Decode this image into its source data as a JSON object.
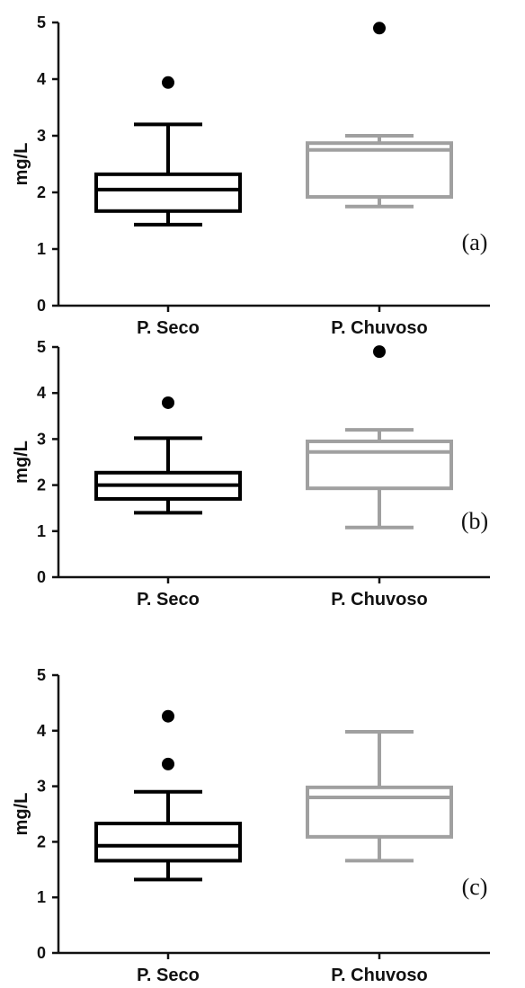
{
  "chart_data": [
    {
      "type": "boxplot",
      "panel_label": "(a)",
      "ylabel": "mg/L",
      "ylim": [
        0,
        5
      ],
      "yticks": [
        "0",
        "1",
        "2",
        "3",
        "4",
        "5"
      ],
      "categories": [
        "P. Seco",
        "P. Chuvoso"
      ],
      "series": [
        {
          "color": "#000000",
          "whisker_low": 1.43,
          "q1": 1.67,
          "median": 2.05,
          "q3": 2.32,
          "whisker_high": 3.2,
          "outliers": [
            3.94
          ]
        },
        {
          "color": "#a0a0a0",
          "whisker_low": 1.75,
          "q1": 1.92,
          "median": 2.75,
          "q3": 2.87,
          "whisker_high": 3.0,
          "outliers": [
            4.9
          ]
        }
      ]
    },
    {
      "type": "boxplot",
      "panel_label": "(b)",
      "ylabel": "mg/L",
      "ylim": [
        0,
        5
      ],
      "yticks": [
        "0",
        "1",
        "2",
        "3",
        "4",
        "5"
      ],
      "categories": [
        "P. Seco",
        "P. Chuvoso"
      ],
      "series": [
        {
          "color": "#000000",
          "whisker_low": 1.4,
          "q1": 1.7,
          "median": 2.0,
          "q3": 2.27,
          "whisker_high": 3.02,
          "outliers": [
            3.79
          ]
        },
        {
          "color": "#a0a0a0",
          "whisker_low": 1.08,
          "q1": 1.93,
          "median": 2.72,
          "q3": 2.95,
          "whisker_high": 3.2,
          "outliers": [
            4.9
          ]
        }
      ]
    },
    {
      "type": "boxplot",
      "panel_label": "(c)",
      "ylabel": "mg/L",
      "ylim": [
        0,
        5
      ],
      "yticks": [
        "0",
        "1",
        "2",
        "3",
        "4",
        "5"
      ],
      "categories": [
        "P. Seco",
        "P. Chuvoso"
      ],
      "series": [
        {
          "color": "#000000",
          "whisker_low": 1.32,
          "q1": 1.66,
          "median": 1.93,
          "q3": 2.33,
          "whisker_high": 2.9,
          "outliers": [
            3.4,
            4.26
          ]
        },
        {
          "color": "#a0a0a0",
          "whisker_low": 1.66,
          "q1": 2.09,
          "median": 2.8,
          "q3": 2.98,
          "whisker_high": 3.98,
          "outliers": []
        }
      ]
    }
  ]
}
